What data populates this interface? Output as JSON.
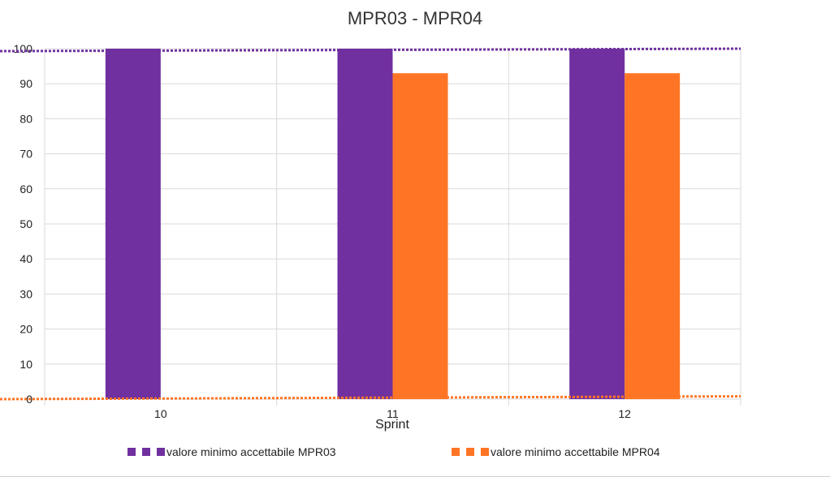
{
  "chart_data": {
    "type": "bar",
    "title": "MPR03 - MPR04",
    "xlabel": "Sprint",
    "ylabel": "",
    "categories": [
      "10",
      "11",
      "12"
    ],
    "ylim": [
      0,
      100
    ],
    "yticks": [
      0,
      10,
      20,
      30,
      40,
      50,
      60,
      70,
      80,
      90,
      100
    ],
    "grid": true,
    "legend_position": "bottom",
    "series": [
      {
        "values": [
          100,
          100,
          100
        ],
        "color": "#7030a0"
      },
      {
        "values": [
          null,
          93,
          93
        ],
        "color": "#ff7525"
      }
    ],
    "threshold_lines": [
      {
        "name": "valore minimo accettabile MPR03",
        "from": 99.3,
        "to": 100,
        "color": "#7030a0"
      },
      {
        "name": "valore minimo accettabile MPR04",
        "from": 0,
        "to": 0.8,
        "color": "#ff7525"
      }
    ]
  }
}
